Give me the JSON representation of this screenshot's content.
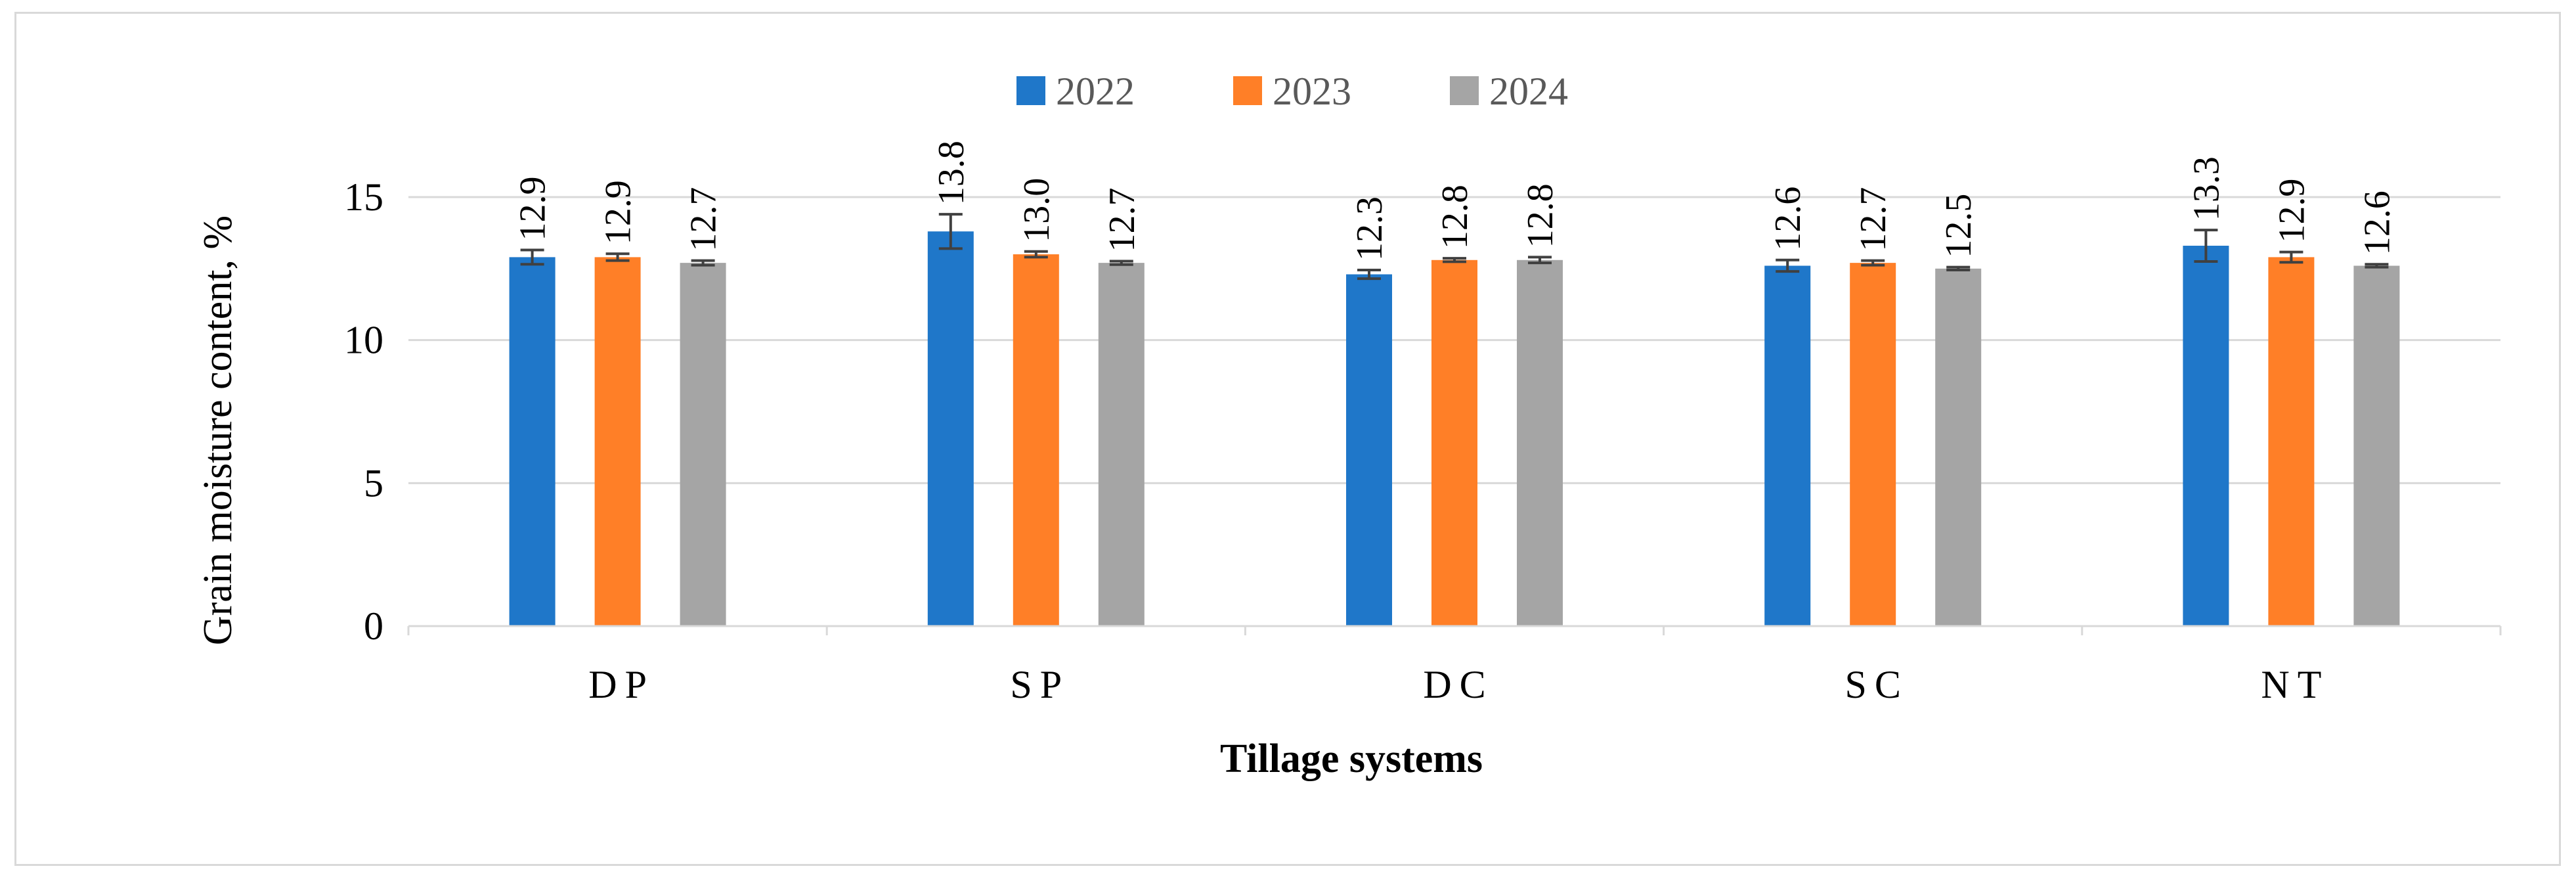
{
  "chart_data": {
    "type": "bar",
    "title": "",
    "xlabel": "Tillage systems",
    "ylabel": "Grain moisture content, %",
    "ylim": [
      0,
      15
    ],
    "yticks": [
      0,
      5,
      10,
      15
    ],
    "grid": true,
    "legend_position": "top-center",
    "categories": [
      "DP",
      "SP",
      "DC",
      "SC",
      "NT"
    ],
    "series": [
      {
        "name": "2022",
        "color": "#1f77c9",
        "values": [
          12.9,
          13.8,
          12.3,
          12.6,
          13.3
        ],
        "errors": [
          0.25,
          0.6,
          0.15,
          0.2,
          0.55
        ],
        "labels": [
          "12.9",
          "13.8",
          "12.3",
          "12.6",
          "13.3"
        ]
      },
      {
        "name": "2023",
        "color": "#ff7f27",
        "values": [
          12.9,
          13.0,
          12.8,
          12.7,
          12.9
        ],
        "errors": [
          0.12,
          0.1,
          0.06,
          0.08,
          0.18
        ],
        "labels": [
          "12.9",
          "13.0",
          "12.8",
          "12.7",
          "12.9"
        ]
      },
      {
        "name": "2024",
        "color": "#a5a5a5",
        "values": [
          12.7,
          12.7,
          12.8,
          12.5,
          12.6
        ],
        "errors": [
          0.08,
          0.06,
          0.1,
          0.05,
          0.05
        ],
        "labels": [
          "12.7",
          "12.7",
          "12.8",
          "12.5",
          "12.6"
        ]
      }
    ]
  }
}
